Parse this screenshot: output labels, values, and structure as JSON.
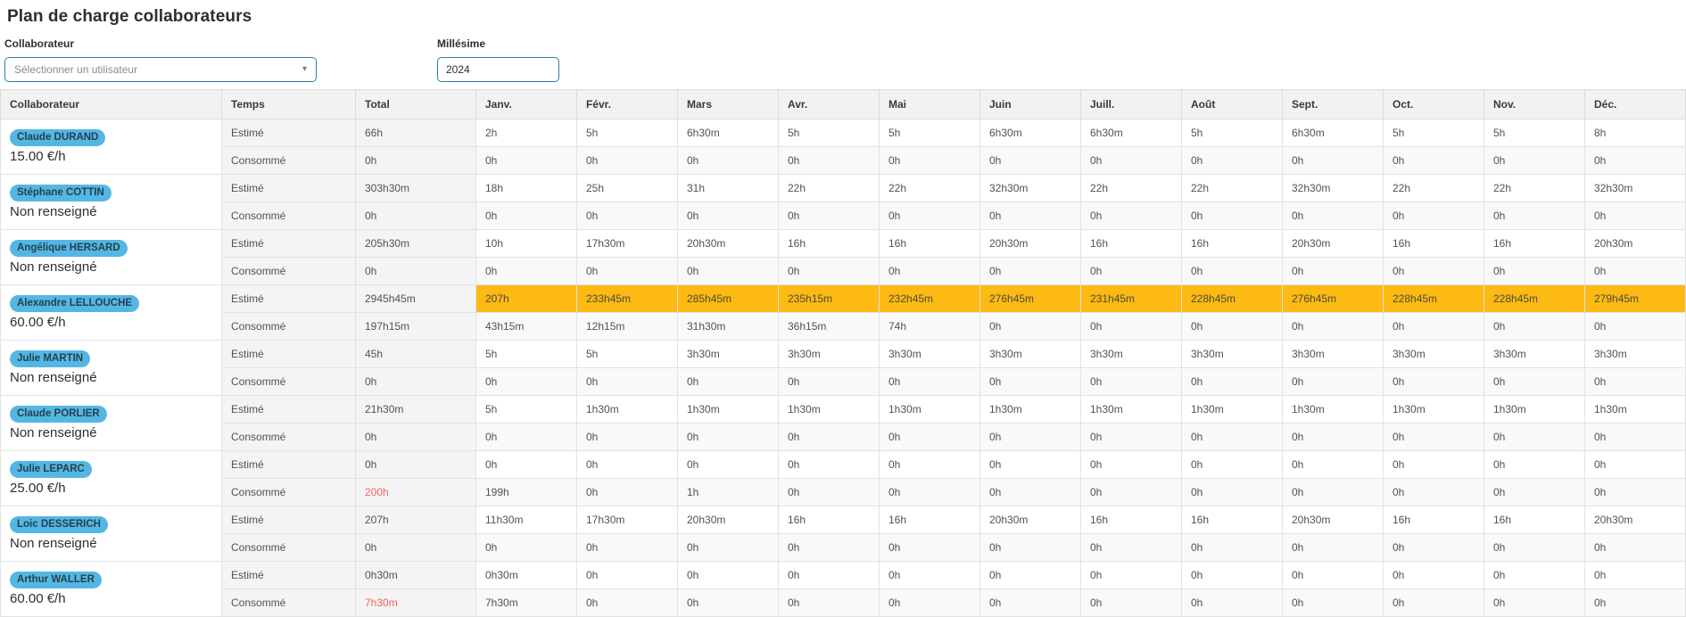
{
  "page": {
    "title": "Plan de charge collaborateurs"
  },
  "filters": {
    "collaborateur_label": "Collaborateur",
    "collaborateur_placeholder": "Sélectionner un utilisateur",
    "millesime_label": "Millésime",
    "millesime_value": "2024"
  },
  "icons": {
    "select_caret": "▾"
  },
  "colors": {
    "accent_border": "#2b7f99",
    "badge_blue": "#54b7e3",
    "highlight_orange": "#fcba12",
    "alert_red": "#f8625f",
    "header_gray": "#f2f2f2"
  },
  "table": {
    "columns": [
      "Collaborateur",
      "Temps",
      "Total",
      "Janv.",
      "Févr.",
      "Mars",
      "Avr.",
      "Mai",
      "Juin",
      "Juill.",
      "Août",
      "Sept.",
      "Oct.",
      "Nov.",
      "Déc."
    ],
    "row_labels": {
      "estimated": "Estimé",
      "consumed": "Consommé"
    },
    "rows": [
      {
        "name": "Claude DURAND",
        "rate": "15.00 €/h",
        "estimated": {
          "total": "66h",
          "highlight": false,
          "months": [
            "2h",
            "5h",
            "6h30m",
            "5h",
            "5h",
            "6h30m",
            "6h30m",
            "5h",
            "6h30m",
            "5h",
            "5h",
            "8h"
          ]
        },
        "consumed": {
          "total": "0h",
          "total_alert": false,
          "months": [
            "0h",
            "0h",
            "0h",
            "0h",
            "0h",
            "0h",
            "0h",
            "0h",
            "0h",
            "0h",
            "0h",
            "0h"
          ]
        }
      },
      {
        "name": "Stéphane COTTIN",
        "rate": "Non renseigné",
        "estimated": {
          "total": "303h30m",
          "highlight": false,
          "months": [
            "18h",
            "25h",
            "31h",
            "22h",
            "22h",
            "32h30m",
            "22h",
            "22h",
            "32h30m",
            "22h",
            "22h",
            "32h30m"
          ]
        },
        "consumed": {
          "total": "0h",
          "total_alert": false,
          "months": [
            "0h",
            "0h",
            "0h",
            "0h",
            "0h",
            "0h",
            "0h",
            "0h",
            "0h",
            "0h",
            "0h",
            "0h"
          ]
        }
      },
      {
        "name": "Angélique HERSARD",
        "rate": "Non renseigné",
        "estimated": {
          "total": "205h30m",
          "highlight": false,
          "months": [
            "10h",
            "17h30m",
            "20h30m",
            "16h",
            "16h",
            "20h30m",
            "16h",
            "16h",
            "20h30m",
            "16h",
            "16h",
            "20h30m"
          ]
        },
        "consumed": {
          "total": "0h",
          "total_alert": false,
          "months": [
            "0h",
            "0h",
            "0h",
            "0h",
            "0h",
            "0h",
            "0h",
            "0h",
            "0h",
            "0h",
            "0h",
            "0h"
          ]
        }
      },
      {
        "name": "Alexandre LELLOUCHE",
        "rate": "60.00 €/h",
        "estimated": {
          "total": "2945h45m",
          "highlight": true,
          "months": [
            "207h",
            "233h45m",
            "285h45m",
            "235h15m",
            "232h45m",
            "276h45m",
            "231h45m",
            "228h45m",
            "276h45m",
            "228h45m",
            "228h45m",
            "279h45m"
          ]
        },
        "consumed": {
          "total": "197h15m",
          "total_alert": false,
          "months": [
            "43h15m",
            "12h15m",
            "31h30m",
            "36h15m",
            "74h",
            "0h",
            "0h",
            "0h",
            "0h",
            "0h",
            "0h",
            "0h"
          ]
        }
      },
      {
        "name": "Julie MARTIN",
        "rate": "Non renseigné",
        "estimated": {
          "total": "45h",
          "highlight": false,
          "months": [
            "5h",
            "5h",
            "3h30m",
            "3h30m",
            "3h30m",
            "3h30m",
            "3h30m",
            "3h30m",
            "3h30m",
            "3h30m",
            "3h30m",
            "3h30m"
          ]
        },
        "consumed": {
          "total": "0h",
          "total_alert": false,
          "months": [
            "0h",
            "0h",
            "0h",
            "0h",
            "0h",
            "0h",
            "0h",
            "0h",
            "0h",
            "0h",
            "0h",
            "0h"
          ]
        }
      },
      {
        "name": "Claude PORLIER",
        "rate": "Non renseigné",
        "estimated": {
          "total": "21h30m",
          "highlight": false,
          "months": [
            "5h",
            "1h30m",
            "1h30m",
            "1h30m",
            "1h30m",
            "1h30m",
            "1h30m",
            "1h30m",
            "1h30m",
            "1h30m",
            "1h30m",
            "1h30m"
          ]
        },
        "consumed": {
          "total": "0h",
          "total_alert": false,
          "months": [
            "0h",
            "0h",
            "0h",
            "0h",
            "0h",
            "0h",
            "0h",
            "0h",
            "0h",
            "0h",
            "0h",
            "0h"
          ]
        }
      },
      {
        "name": "Julie LEPARC",
        "rate": "25.00 €/h",
        "estimated": {
          "total": "0h",
          "highlight": false,
          "months": [
            "0h",
            "0h",
            "0h",
            "0h",
            "0h",
            "0h",
            "0h",
            "0h",
            "0h",
            "0h",
            "0h",
            "0h"
          ]
        },
        "consumed": {
          "total": "200h",
          "total_alert": true,
          "months": [
            "199h",
            "0h",
            "1h",
            "0h",
            "0h",
            "0h",
            "0h",
            "0h",
            "0h",
            "0h",
            "0h",
            "0h"
          ]
        }
      },
      {
        "name": "Loic DESSERICH",
        "rate": "Non renseigné",
        "estimated": {
          "total": "207h",
          "highlight": false,
          "months": [
            "11h30m",
            "17h30m",
            "20h30m",
            "16h",
            "16h",
            "20h30m",
            "16h",
            "16h",
            "20h30m",
            "16h",
            "16h",
            "20h30m"
          ]
        },
        "consumed": {
          "total": "0h",
          "total_alert": false,
          "months": [
            "0h",
            "0h",
            "0h",
            "0h",
            "0h",
            "0h",
            "0h",
            "0h",
            "0h",
            "0h",
            "0h",
            "0h"
          ]
        }
      },
      {
        "name": "Arthur WALLER",
        "rate": "60.00 €/h",
        "estimated": {
          "total": "0h30m",
          "highlight": false,
          "months": [
            "0h30m",
            "0h",
            "0h",
            "0h",
            "0h",
            "0h",
            "0h",
            "0h",
            "0h",
            "0h",
            "0h",
            "0h"
          ]
        },
        "consumed": {
          "total": "7h30m",
          "total_alert": true,
          "months": [
            "7h30m",
            "0h",
            "0h",
            "0h",
            "0h",
            "0h",
            "0h",
            "0h",
            "0h",
            "0h",
            "0h",
            "0h"
          ]
        }
      }
    ]
  }
}
